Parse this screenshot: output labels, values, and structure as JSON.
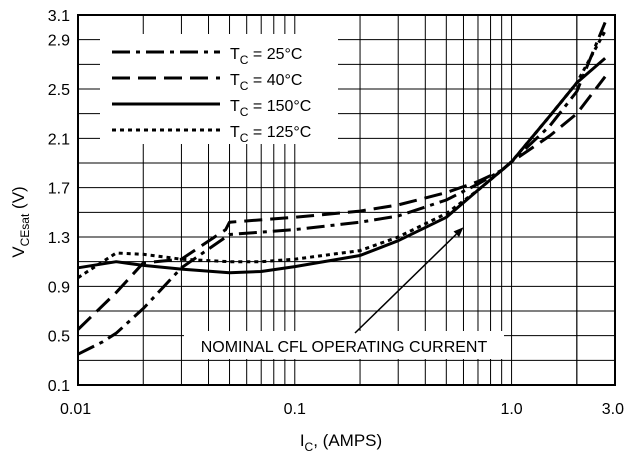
{
  "chart_data": {
    "type": "line",
    "title": "",
    "xlabel": "IC, (AMPS)",
    "xlabel_main": "I",
    "xlabel_sub": "C",
    "xlabel_rest": ", (AMPS)",
    "ylabel": "VCEsat (V)",
    "ylabel_main": "V",
    "ylabel_sub": "CEsat",
    "ylabel_rest": " (V)",
    "x_scale": "log",
    "xlim": [
      0.01,
      3.0
    ],
    "ylim": [
      0.1,
      3.1
    ],
    "x_ticks": [
      {
        "value": 0.01,
        "label": "0.01"
      },
      {
        "value": 0.1,
        "label": "0.1"
      },
      {
        "value": 1.0,
        "label": "1.0"
      },
      {
        "value": 3.0,
        "label": "3.0"
      }
    ],
    "y_ticks": [
      {
        "value": 0.1,
        "label": "0.1"
      },
      {
        "value": 0.5,
        "label": "0.5"
      },
      {
        "value": 0.9,
        "label": "0.9"
      },
      {
        "value": 1.3,
        "label": "1.3"
      },
      {
        "value": 1.7,
        "label": "1.7"
      },
      {
        "value": 2.1,
        "label": "2.1"
      },
      {
        "value": 2.5,
        "label": "2.5"
      },
      {
        "value": 2.9,
        "label": "2.9"
      },
      {
        "value": 3.1,
        "label": "3.1"
      }
    ],
    "grid": true,
    "legend_position": "top-left",
    "series": [
      {
        "name_main": "T",
        "name_sub": "C",
        "name_rest": " = 25°C",
        "dash": "dashdot",
        "x": [
          0.01,
          0.013,
          0.015,
          0.02,
          0.03,
          0.05,
          0.1,
          0.2,
          0.3,
          0.5,
          0.7,
          0.9,
          1.0,
          1.5,
          2.0,
          2.7
        ],
        "y": [
          0.35,
          0.45,
          0.52,
          0.72,
          1.05,
          1.32,
          1.36,
          1.42,
          1.47,
          1.6,
          1.73,
          1.84,
          1.91,
          2.2,
          2.48,
          3.04
        ]
      },
      {
        "name_main": "T",
        "name_sub": "C",
        "name_rest": " = 40°C",
        "dash": "dash",
        "x": [
          0.01,
          0.015,
          0.02,
          0.03,
          0.048,
          0.05,
          0.1,
          0.2,
          0.3,
          0.5,
          0.7,
          0.9,
          1.0,
          1.5,
          2.0,
          2.7
        ],
        "y": [
          0.55,
          0.85,
          1.09,
          1.12,
          1.36,
          1.42,
          1.46,
          1.51,
          1.56,
          1.66,
          1.75,
          1.84,
          1.91,
          2.12,
          2.3,
          2.6
        ]
      },
      {
        "name_main": "T",
        "name_sub": "C",
        "name_rest": " = 150°C",
        "dash": "solid",
        "x": [
          0.01,
          0.015,
          0.02,
          0.03,
          0.05,
          0.07,
          0.1,
          0.2,
          0.3,
          0.5,
          0.7,
          0.9,
          1.0,
          1.5,
          2.0,
          2.7
        ],
        "y": [
          1.05,
          1.1,
          1.07,
          1.04,
          1.01,
          1.02,
          1.06,
          1.15,
          1.27,
          1.46,
          1.68,
          1.84,
          1.91,
          2.28,
          2.55,
          2.75
        ]
      },
      {
        "name_main": "T",
        "name_sub": "C",
        "name_rest": " = 125°C",
        "dash": "dot",
        "x": [
          0.01,
          0.013,
          0.015,
          0.02,
          0.03,
          0.05,
          0.07,
          0.1,
          0.2,
          0.3,
          0.5,
          0.7,
          0.9,
          1.0,
          1.5,
          2.0,
          2.7
        ],
        "y": [
          0.97,
          1.1,
          1.17,
          1.16,
          1.12,
          1.1,
          1.1,
          1.12,
          1.19,
          1.3,
          1.49,
          1.68,
          1.84,
          1.91,
          2.28,
          2.55,
          2.97
        ]
      }
    ],
    "annotation": {
      "text": "NOMINAL CFL OPERATING CURRENT",
      "arrow_to": [
        0.6,
        1.72
      ]
    }
  }
}
